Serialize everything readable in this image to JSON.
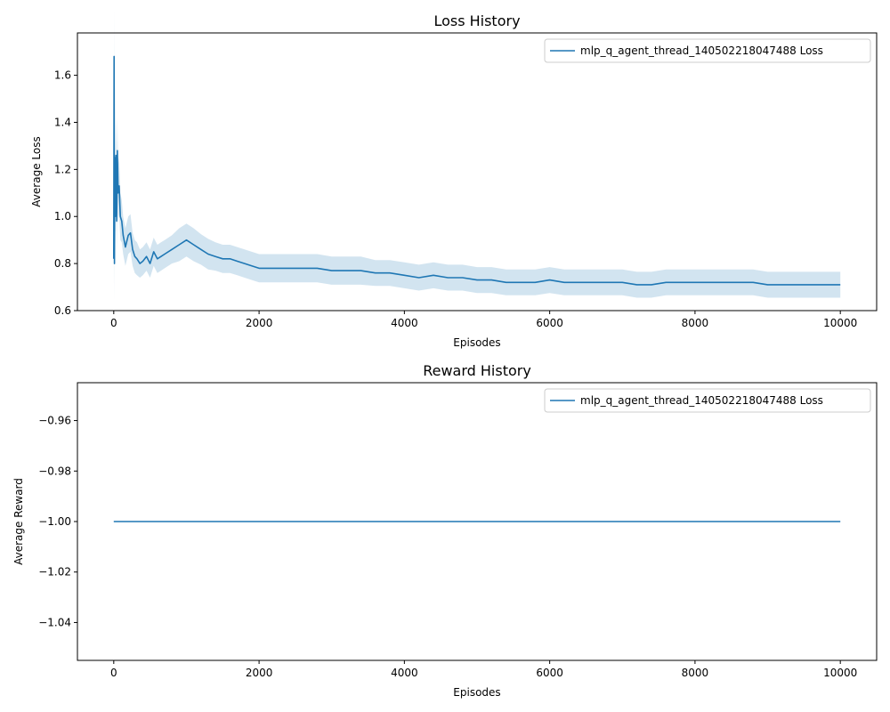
{
  "chart_data": [
    {
      "type": "line",
      "title": "Loss History",
      "xlabel": "Episodes",
      "ylabel": "Average Loss",
      "xlim": [
        -500,
        10500
      ],
      "ylim": [
        0.6,
        1.78
      ],
      "xticks": [
        0,
        2000,
        4000,
        6000,
        8000,
        10000
      ],
      "yticks": [
        0.6,
        0.8,
        1.0,
        1.2,
        1.4,
        1.6
      ],
      "ytick_labels": [
        "0.6",
        "0.8",
        "1.0",
        "1.2",
        "1.4",
        "1.6"
      ],
      "grid": false,
      "legend": "top-right",
      "series": [
        {
          "name": "mlp_q_agent_thread_140502218047488 Loss",
          "color": "#1f77b4",
          "band_color": "#1f77b4",
          "x": [
            0,
            5,
            10,
            15,
            20,
            30,
            40,
            50,
            60,
            75,
            90,
            110,
            130,
            160,
            200,
            230,
            260,
            290,
            320,
            360,
            400,
            450,
            500,
            550,
            600,
            650,
            700,
            800,
            900,
            1000,
            1100,
            1200,
            1300,
            1400,
            1500,
            1600,
            1700,
            1800,
            1900,
            2000,
            2200,
            2400,
            2600,
            2800,
            3000,
            3200,
            3400,
            3600,
            3800,
            4000,
            4200,
            4400,
            4600,
            4800,
            5000,
            5200,
            5400,
            5600,
            5800,
            6000,
            6200,
            6400,
            6600,
            6800,
            7000,
            7200,
            7400,
            7600,
            7800,
            8000,
            8200,
            8400,
            8600,
            8800,
            9000,
            9200,
            9400,
            9600,
            9800,
            10000
          ],
          "y": [
            0.82,
            1.68,
            0.8,
            1.25,
            1.0,
            1.26,
            0.98,
            1.28,
            1.1,
            1.13,
            1.0,
            0.98,
            0.92,
            0.87,
            0.92,
            0.93,
            0.86,
            0.83,
            0.82,
            0.8,
            0.81,
            0.83,
            0.8,
            0.85,
            0.82,
            0.83,
            0.84,
            0.86,
            0.88,
            0.9,
            0.88,
            0.86,
            0.84,
            0.83,
            0.82,
            0.82,
            0.81,
            0.8,
            0.79,
            0.78,
            0.78,
            0.78,
            0.78,
            0.78,
            0.77,
            0.77,
            0.77,
            0.76,
            0.76,
            0.75,
            0.74,
            0.75,
            0.74,
            0.74,
            0.73,
            0.73,
            0.72,
            0.72,
            0.72,
            0.73,
            0.72,
            0.72,
            0.72,
            0.72,
            0.72,
            0.71,
            0.71,
            0.72,
            0.72,
            0.72,
            0.72,
            0.72,
            0.72,
            0.72,
            0.71,
            0.71,
            0.71,
            0.71,
            0.71,
            0.71
          ],
          "band_halfwidth": [
            0.12,
            0.2,
            0.16,
            0.15,
            0.12,
            0.15,
            0.12,
            0.14,
            0.12,
            0.12,
            0.1,
            0.09,
            0.08,
            0.08,
            0.08,
            0.08,
            0.07,
            0.07,
            0.07,
            0.06,
            0.06,
            0.06,
            0.06,
            0.06,
            0.06,
            0.06,
            0.06,
            0.06,
            0.07,
            0.07,
            0.07,
            0.065,
            0.065,
            0.06,
            0.06,
            0.06,
            0.06,
            0.06,
            0.06,
            0.06,
            0.06,
            0.06,
            0.06,
            0.06,
            0.06,
            0.06,
            0.06,
            0.055,
            0.055,
            0.055,
            0.055,
            0.055,
            0.055,
            0.055,
            0.055,
            0.055,
            0.055,
            0.055,
            0.055,
            0.055,
            0.055,
            0.055,
            0.055,
            0.055,
            0.055,
            0.055,
            0.055,
            0.055,
            0.055,
            0.055,
            0.055,
            0.055,
            0.055,
            0.055,
            0.055,
            0.055,
            0.055,
            0.055,
            0.055,
            0.055
          ]
        }
      ]
    },
    {
      "type": "line",
      "title": "Reward History",
      "xlabel": "Episodes",
      "ylabel": "Average Reward",
      "xlim": [
        -500,
        10500
      ],
      "ylim": [
        -1.055,
        -0.945
      ],
      "xticks": [
        0,
        2000,
        4000,
        6000,
        8000,
        10000
      ],
      "yticks": [
        -1.04,
        -1.02,
        -1.0,
        -0.98,
        -0.96
      ],
      "ytick_labels": [
        "−1.04",
        "−1.02",
        "−1.00",
        "−0.98",
        "−0.96"
      ],
      "grid": false,
      "legend": "top-right",
      "series": [
        {
          "name": "mlp_q_agent_thread_140502218047488 Loss",
          "color": "#1f77b4",
          "x": [
            0,
            10000
          ],
          "y": [
            -1.0,
            -1.0
          ]
        }
      ]
    }
  ]
}
